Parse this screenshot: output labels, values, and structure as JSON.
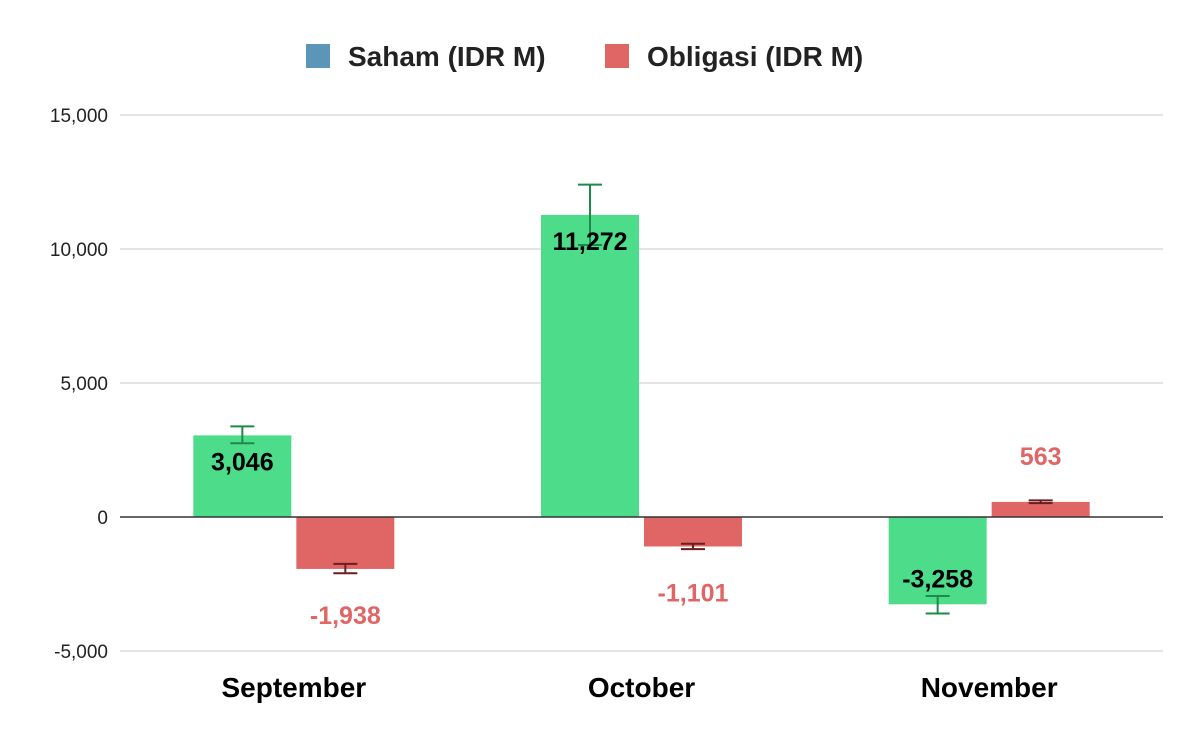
{
  "chart_data": {
    "type": "bar",
    "categories": [
      "September",
      "October",
      "November"
    ],
    "series": [
      {
        "name": "Saham (IDR M)",
        "legend_color": "#5b95b8",
        "bar_color": "#4cdc8a",
        "label_color": "#000000",
        "error_color": "#1e8a4a",
        "values": [
          3046,
          11272,
          -3258
        ],
        "labels": [
          "3,046",
          "11,272",
          "-3,258"
        ],
        "error_low": [
          2750,
          10150,
          -3600
        ],
        "error_high": [
          3380,
          12400,
          -2950
        ]
      },
      {
        "name": "Obligasi (IDR M)",
        "legend_color": "#e06666",
        "bar_color": "#e06666",
        "label_color": "#e06666",
        "error_color": "#6b1e1e",
        "values": [
          -1938,
          -1101,
          563
        ],
        "labels": [
          "-1,938",
          "-1,101",
          "563"
        ],
        "error_low": [
          -2100,
          -1200,
          520
        ],
        "error_high": [
          -1750,
          -1000,
          620
        ]
      }
    ],
    "y_ticks": [
      15000,
      10000,
      5000,
      0,
      -5000
    ],
    "y_tick_labels": [
      "15,000",
      "10,000",
      "5,000",
      "0",
      "-5,000"
    ],
    "ylim": [
      -5000,
      15000
    ],
    "grid": true,
    "legend_position": "top",
    "title": "",
    "xlabel": "",
    "ylabel": ""
  }
}
